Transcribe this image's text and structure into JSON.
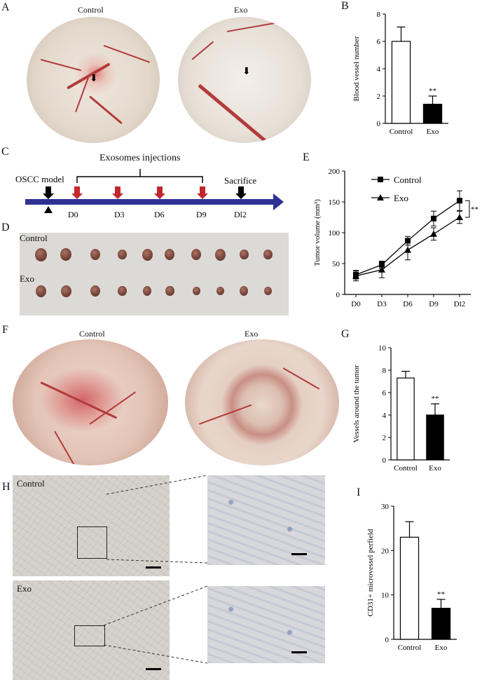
{
  "panels": {
    "A": "A",
    "B": "B",
    "C": "C",
    "D": "D",
    "E": "E",
    "F": "F",
    "G": "G",
    "H": "H",
    "I": "I"
  },
  "groups": {
    "control": "Control",
    "exo": "Exo"
  },
  "significance": "**",
  "timeline": {
    "injections_label": "Exosomes  injections",
    "model_label": "OSCC model",
    "sacrifice_label": "Sacrifice",
    "days": [
      "D0",
      "D3",
      "D6",
      "D9",
      "Dl2"
    ]
  },
  "colors": {
    "timeline_arrow": "#2e3192",
    "injection_arrow": "#c1272d",
    "marker": "#000000"
  },
  "chart_data": [
    {
      "id": "B",
      "type": "bar",
      "categories": [
        "Control",
        "Exo"
      ],
      "values": [
        6.0,
        1.4
      ],
      "errors": [
        1.05,
        0.6
      ],
      "ylabel": "Blood vessel number",
      "ylim": [
        0,
        8
      ],
      "yticks": [
        0,
        2,
        4,
        6,
        8
      ],
      "fills": [
        "#ffffff",
        "#000000"
      ],
      "annotation": "**"
    },
    {
      "id": "E",
      "type": "line",
      "x": [
        "D0",
        "D3",
        "D6",
        "D9",
        "Dl2"
      ],
      "ylabel": "Tumor volume (mm³)",
      "ylim": [
        0,
        200
      ],
      "yticks": [
        0,
        50,
        100,
        150,
        200
      ],
      "legend_position": "top-left",
      "series": [
        {
          "name": "Control",
          "marker": "square",
          "values": [
            32,
            48,
            87,
            123,
            152
          ],
          "errors": [
            7,
            6,
            7,
            12,
            16
          ]
        },
        {
          "name": "Exo",
          "marker": "triangle",
          "values": [
            30,
            40,
            72,
            98,
            125
          ],
          "errors": [
            8,
            13,
            16,
            10,
            10
          ]
        }
      ],
      "annotation": "**"
    },
    {
      "id": "G",
      "type": "bar",
      "categories": [
        "Control",
        "Exo"
      ],
      "values": [
        7.3,
        4.0
      ],
      "errors": [
        0.6,
        1.0
      ],
      "ylabel": "Vessels around the tumor",
      "ylim": [
        0,
        10
      ],
      "yticks": [
        0,
        2,
        4,
        6,
        8,
        10
      ],
      "fills": [
        "#ffffff",
        "#000000"
      ],
      "annotation": "**"
    },
    {
      "id": "I",
      "type": "bar",
      "categories": [
        "Control",
        "Exo"
      ],
      "values": [
        23,
        7
      ],
      "errors": [
        3.5,
        2
      ],
      "ylabel": "CD31+ microvessel perfield",
      "ylim": [
        0,
        30
      ],
      "yticks": [
        0,
        10,
        20,
        30
      ],
      "fills": [
        "#ffffff",
        "#000000"
      ],
      "annotation": "**"
    }
  ]
}
